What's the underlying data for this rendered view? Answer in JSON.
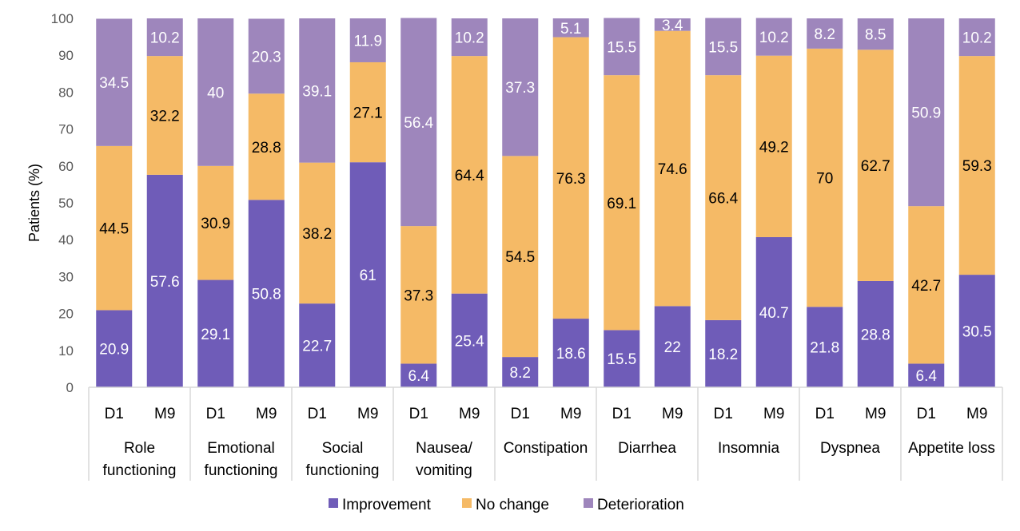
{
  "chart_data": {
    "type": "bar",
    "stacked": true,
    "title": "",
    "xlabel": "",
    "ylabel": "Patients (%)",
    "ylim": [
      0,
      100
    ],
    "yticks": [
      0,
      10,
      20,
      30,
      40,
      50,
      60,
      70,
      80,
      90,
      100
    ],
    "grid": false,
    "legend_position": "bottom",
    "groups": [
      "Role functioning",
      "Emotional functioning",
      "Social functioning",
      "Nausea/ vomiting",
      "Constipation",
      "Diarrhea",
      "Insomnia",
      "Dyspnea",
      "Appetite loss"
    ],
    "group_lines": [
      [
        "Role",
        "functioning"
      ],
      [
        "Emotional",
        "functioning"
      ],
      [
        "Social",
        "functioning"
      ],
      [
        "Nausea/",
        "vomiting"
      ],
      [
        "Constipation"
      ],
      [
        "Diarrhea"
      ],
      [
        "Insomnia"
      ],
      [
        "Dyspnea"
      ],
      [
        "Appetite loss"
      ]
    ],
    "subcategories": [
      "D1",
      "M9"
    ],
    "series": [
      {
        "name": "Improvement",
        "color": "#6F5CB8",
        "label_color": "#ffffff",
        "values": [
          [
            20.9,
            57.6
          ],
          [
            29.1,
            50.8
          ],
          [
            22.7,
            61
          ],
          [
            6.4,
            25.4
          ],
          [
            8.2,
            18.6
          ],
          [
            15.5,
            22
          ],
          [
            18.2,
            40.7
          ],
          [
            21.8,
            28.8
          ],
          [
            6.4,
            30.5
          ]
        ]
      },
      {
        "name": "No change",
        "color": "#F5BA66",
        "label_color": "#000000",
        "values": [
          [
            44.5,
            32.2
          ],
          [
            30.9,
            28.8
          ],
          [
            38.2,
            27.1
          ],
          [
            37.3,
            64.4
          ],
          [
            54.5,
            76.3
          ],
          [
            69.1,
            74.6
          ],
          [
            66.4,
            49.2
          ],
          [
            70,
            62.7
          ],
          [
            42.7,
            59.3
          ]
        ]
      },
      {
        "name": "Deterioration",
        "color": "#9E86BC",
        "label_color": "#ffffff",
        "values": [
          [
            34.5,
            10.2
          ],
          [
            40,
            20.3
          ],
          [
            39.1,
            11.9
          ],
          [
            56.4,
            10.2
          ],
          [
            37.3,
            5.1
          ],
          [
            15.5,
            3.4
          ],
          [
            15.5,
            10.2
          ],
          [
            8.2,
            8.5
          ],
          [
            50.9,
            10.2
          ]
        ]
      }
    ]
  }
}
